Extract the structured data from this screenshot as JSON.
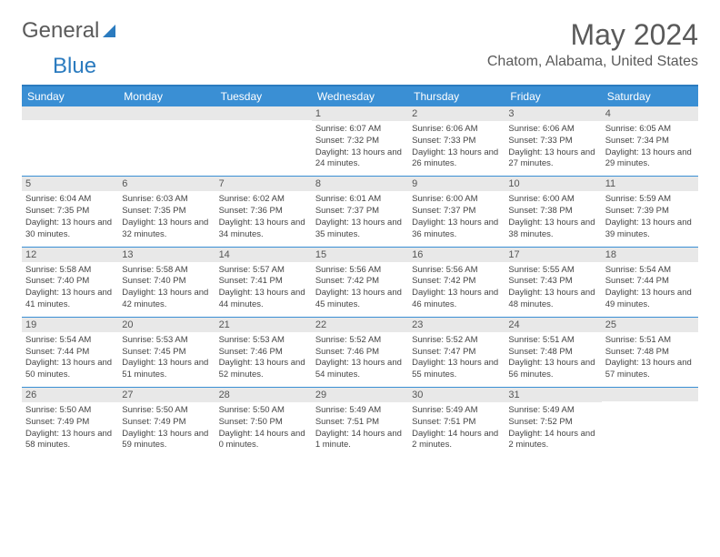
{
  "logo": {
    "word1": "General",
    "word2": "Blue"
  },
  "title": {
    "month": "May 2024",
    "location": "Chatom, Alabama, United States"
  },
  "colors": {
    "header_bg": "#3a8fd4",
    "header_text": "#ffffff",
    "daynum_bg": "#e8e8e8",
    "rule": "#3a8fd4",
    "text": "#444444",
    "title_text": "#5a5a5a"
  },
  "typography": {
    "title_fontsize": 32,
    "location_fontsize": 16,
    "dayheader_fontsize": 12,
    "cell_fontsize": 9.5
  },
  "day_headers": [
    "Sunday",
    "Monday",
    "Tuesday",
    "Wednesday",
    "Thursday",
    "Friday",
    "Saturday"
  ],
  "weeks": [
    [
      {
        "blank": true
      },
      {
        "blank": true
      },
      {
        "blank": true
      },
      {
        "n": "1",
        "sr": "6:07 AM",
        "ss": "7:32 PM",
        "dl": "13 hours and 24 minutes."
      },
      {
        "n": "2",
        "sr": "6:06 AM",
        "ss": "7:33 PM",
        "dl": "13 hours and 26 minutes."
      },
      {
        "n": "3",
        "sr": "6:06 AM",
        "ss": "7:33 PM",
        "dl": "13 hours and 27 minutes."
      },
      {
        "n": "4",
        "sr": "6:05 AM",
        "ss": "7:34 PM",
        "dl": "13 hours and 29 minutes."
      }
    ],
    [
      {
        "n": "5",
        "sr": "6:04 AM",
        "ss": "7:35 PM",
        "dl": "13 hours and 30 minutes."
      },
      {
        "n": "6",
        "sr": "6:03 AM",
        "ss": "7:35 PM",
        "dl": "13 hours and 32 minutes."
      },
      {
        "n": "7",
        "sr": "6:02 AM",
        "ss": "7:36 PM",
        "dl": "13 hours and 34 minutes."
      },
      {
        "n": "8",
        "sr": "6:01 AM",
        "ss": "7:37 PM",
        "dl": "13 hours and 35 minutes."
      },
      {
        "n": "9",
        "sr": "6:00 AM",
        "ss": "7:37 PM",
        "dl": "13 hours and 36 minutes."
      },
      {
        "n": "10",
        "sr": "6:00 AM",
        "ss": "7:38 PM",
        "dl": "13 hours and 38 minutes."
      },
      {
        "n": "11",
        "sr": "5:59 AM",
        "ss": "7:39 PM",
        "dl": "13 hours and 39 minutes."
      }
    ],
    [
      {
        "n": "12",
        "sr": "5:58 AM",
        "ss": "7:40 PM",
        "dl": "13 hours and 41 minutes."
      },
      {
        "n": "13",
        "sr": "5:58 AM",
        "ss": "7:40 PM",
        "dl": "13 hours and 42 minutes."
      },
      {
        "n": "14",
        "sr": "5:57 AM",
        "ss": "7:41 PM",
        "dl": "13 hours and 44 minutes."
      },
      {
        "n": "15",
        "sr": "5:56 AM",
        "ss": "7:42 PM",
        "dl": "13 hours and 45 minutes."
      },
      {
        "n": "16",
        "sr": "5:56 AM",
        "ss": "7:42 PM",
        "dl": "13 hours and 46 minutes."
      },
      {
        "n": "17",
        "sr": "5:55 AM",
        "ss": "7:43 PM",
        "dl": "13 hours and 48 minutes."
      },
      {
        "n": "18",
        "sr": "5:54 AM",
        "ss": "7:44 PM",
        "dl": "13 hours and 49 minutes."
      }
    ],
    [
      {
        "n": "19",
        "sr": "5:54 AM",
        "ss": "7:44 PM",
        "dl": "13 hours and 50 minutes."
      },
      {
        "n": "20",
        "sr": "5:53 AM",
        "ss": "7:45 PM",
        "dl": "13 hours and 51 minutes."
      },
      {
        "n": "21",
        "sr": "5:53 AM",
        "ss": "7:46 PM",
        "dl": "13 hours and 52 minutes."
      },
      {
        "n": "22",
        "sr": "5:52 AM",
        "ss": "7:46 PM",
        "dl": "13 hours and 54 minutes."
      },
      {
        "n": "23",
        "sr": "5:52 AM",
        "ss": "7:47 PM",
        "dl": "13 hours and 55 minutes."
      },
      {
        "n": "24",
        "sr": "5:51 AM",
        "ss": "7:48 PM",
        "dl": "13 hours and 56 minutes."
      },
      {
        "n": "25",
        "sr": "5:51 AM",
        "ss": "7:48 PM",
        "dl": "13 hours and 57 minutes."
      }
    ],
    [
      {
        "n": "26",
        "sr": "5:50 AM",
        "ss": "7:49 PM",
        "dl": "13 hours and 58 minutes."
      },
      {
        "n": "27",
        "sr": "5:50 AM",
        "ss": "7:49 PM",
        "dl": "13 hours and 59 minutes."
      },
      {
        "n": "28",
        "sr": "5:50 AM",
        "ss": "7:50 PM",
        "dl": "14 hours and 0 minutes."
      },
      {
        "n": "29",
        "sr": "5:49 AM",
        "ss": "7:51 PM",
        "dl": "14 hours and 1 minute."
      },
      {
        "n": "30",
        "sr": "5:49 AM",
        "ss": "7:51 PM",
        "dl": "14 hours and 2 minutes."
      },
      {
        "n": "31",
        "sr": "5:49 AM",
        "ss": "7:52 PM",
        "dl": "14 hours and 2 minutes."
      },
      {
        "blank": true
      }
    ]
  ],
  "labels": {
    "sunrise": "Sunrise:",
    "sunset": "Sunset:",
    "daylight": "Daylight:"
  }
}
